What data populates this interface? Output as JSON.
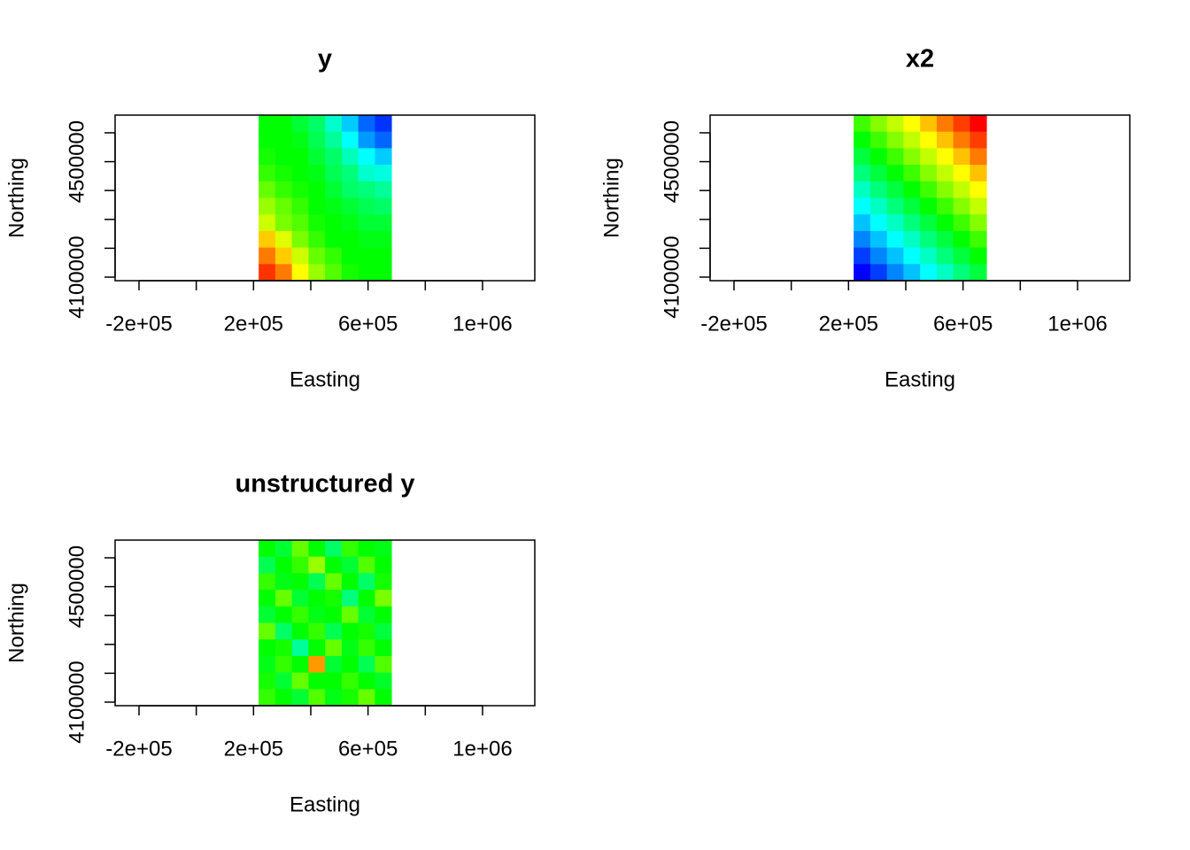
{
  "chart_data": [
    {
      "type": "heatmap",
      "title": "y",
      "xlabel": "Easting",
      "ylabel": "Northing",
      "xlim": [
        -283500,
        1182500
      ],
      "ylim": [
        4087700,
        4661300
      ],
      "extent": [
        218000,
        682000,
        4087700,
        4661300
      ],
      "colorscale": [
        "#0000ff",
        "#00ffff",
        "#00ff00",
        "#ffff00",
        "#ff0000"
      ],
      "xticks": [
        {
          "value": -200000,
          "label": "-2e+05"
        },
        {
          "value": 200000,
          "label": "2e+05"
        },
        {
          "value": 600000,
          "label": "6e+05"
        },
        {
          "value": 1000000,
          "label": "1e+06"
        }
      ],
      "xticks_unlabeled": [
        0,
        400000,
        800000
      ],
      "yticks": [
        4100000,
        4500000
      ],
      "yticks_unlabeled": [
        4200000,
        4300000,
        4400000,
        4600000
      ],
      "grid": [
        [
          0.5,
          0.5,
          0.45,
          0.4,
          0.3,
          0.2,
          0.1,
          0.05
        ],
        [
          0.5,
          0.5,
          0.48,
          0.42,
          0.35,
          0.25,
          0.15,
          0.1
        ],
        [
          0.52,
          0.5,
          0.5,
          0.45,
          0.4,
          0.32,
          0.25,
          0.2
        ],
        [
          0.55,
          0.52,
          0.5,
          0.48,
          0.42,
          0.38,
          0.3,
          0.28
        ],
        [
          0.6,
          0.55,
          0.52,
          0.5,
          0.45,
          0.4,
          0.38,
          0.35
        ],
        [
          0.65,
          0.6,
          0.55,
          0.5,
          0.48,
          0.45,
          0.42,
          0.4
        ],
        [
          0.7,
          0.62,
          0.58,
          0.52,
          0.5,
          0.48,
          0.45,
          0.45
        ],
        [
          0.8,
          0.72,
          0.62,
          0.55,
          0.5,
          0.5,
          0.48,
          0.48
        ],
        [
          0.88,
          0.8,
          0.7,
          0.6,
          0.55,
          0.5,
          0.5,
          0.5
        ],
        [
          0.95,
          0.88,
          0.75,
          0.65,
          0.58,
          0.52,
          0.5,
          0.5
        ]
      ]
    },
    {
      "type": "heatmap",
      "title": "x2",
      "xlabel": "Easting",
      "ylabel": "Northing",
      "xlim": [
        -283500,
        1182500
      ],
      "ylim": [
        4087700,
        4661300
      ],
      "extent": [
        218000,
        682000,
        4087700,
        4661300
      ],
      "colorscale": [
        "#0000ff",
        "#00ffff",
        "#00ff00",
        "#ffff00",
        "#ff0000"
      ],
      "xticks": [
        {
          "value": -200000,
          "label": "-2e+05"
        },
        {
          "value": 200000,
          "label": "2e+05"
        },
        {
          "value": 600000,
          "label": "6e+05"
        },
        {
          "value": 1000000,
          "label": "1e+06"
        }
      ],
      "xticks_unlabeled": [
        0,
        400000,
        800000
      ],
      "yticks": [
        4100000,
        4500000
      ],
      "yticks_unlabeled": [
        4200000,
        4300000,
        4400000,
        4600000
      ],
      "grid": [
        [
          0.56,
          0.63,
          0.69,
          0.75,
          0.81,
          0.88,
          0.94,
          1
        ],
        [
          0.5,
          0.56,
          0.63,
          0.69,
          0.75,
          0.81,
          0.88,
          0.94
        ],
        [
          0.44,
          0.5,
          0.56,
          0.63,
          0.69,
          0.75,
          0.81,
          0.88
        ],
        [
          0.38,
          0.44,
          0.5,
          0.56,
          0.63,
          0.69,
          0.75,
          0.81
        ],
        [
          0.31,
          0.38,
          0.44,
          0.5,
          0.56,
          0.63,
          0.69,
          0.75
        ],
        [
          0.25,
          0.31,
          0.38,
          0.44,
          0.5,
          0.56,
          0.63,
          0.69
        ],
        [
          0.19,
          0.25,
          0.31,
          0.38,
          0.44,
          0.5,
          0.56,
          0.63
        ],
        [
          0.13,
          0.19,
          0.25,
          0.31,
          0.38,
          0.44,
          0.5,
          0.56
        ],
        [
          0.06,
          0.13,
          0.19,
          0.25,
          0.31,
          0.38,
          0.44,
          0.5
        ],
        [
          0,
          0.06,
          0.13,
          0.19,
          0.25,
          0.31,
          0.38,
          0.44
        ]
      ]
    },
    {
      "type": "heatmap",
      "title": "unstructured y",
      "xlabel": "Easting",
      "ylabel": "Northing",
      "xlim": [
        -283500,
        1182500
      ],
      "ylim": [
        4087700,
        4661300
      ],
      "extent": [
        218000,
        682000,
        4087700,
        4661300
      ],
      "colorscale": [
        "#0000ff",
        "#00ffff",
        "#00ff00",
        "#ffff00",
        "#ff0000"
      ],
      "xticks": [
        {
          "value": -200000,
          "label": "-2e+05"
        },
        {
          "value": 200000,
          "label": "2e+05"
        },
        {
          "value": 600000,
          "label": "6e+05"
        },
        {
          "value": 1000000,
          "label": "1e+06"
        }
      ],
      "xticks_unlabeled": [
        0,
        400000,
        800000
      ],
      "yticks": [
        4100000,
        4500000
      ],
      "yticks_unlabeled": [
        4200000,
        4300000,
        4400000,
        4600000
      ],
      "grid": [
        [
          0.5,
          0.45,
          0.6,
          0.5,
          0.4,
          0.55,
          0.5,
          0.48
        ],
        [
          0.42,
          0.5,
          0.55,
          0.65,
          0.5,
          0.45,
          0.58,
          0.5
        ],
        [
          0.55,
          0.48,
          0.5,
          0.42,
          0.6,
          0.5,
          0.4,
          0.52
        ],
        [
          0.5,
          0.6,
          0.45,
          0.5,
          0.52,
          0.38,
          0.5,
          0.62
        ],
        [
          0.45,
          0.5,
          0.55,
          0.48,
          0.5,
          0.6,
          0.45,
          0.5
        ],
        [
          0.6,
          0.4,
          0.5,
          0.55,
          0.42,
          0.5,
          0.52,
          0.44
        ],
        [
          0.5,
          0.52,
          0.35,
          0.5,
          0.6,
          0.48,
          0.55,
          0.5
        ],
        [
          0.48,
          0.55,
          0.5,
          0.85,
          0.45,
          0.5,
          0.42,
          0.58
        ],
        [
          0.52,
          0.45,
          0.6,
          0.5,
          0.5,
          0.55,
          0.5,
          0.46
        ],
        [
          0.55,
          0.5,
          0.45,
          0.58,
          0.48,
          0.52,
          0.6,
          0.5
        ]
      ]
    }
  ]
}
